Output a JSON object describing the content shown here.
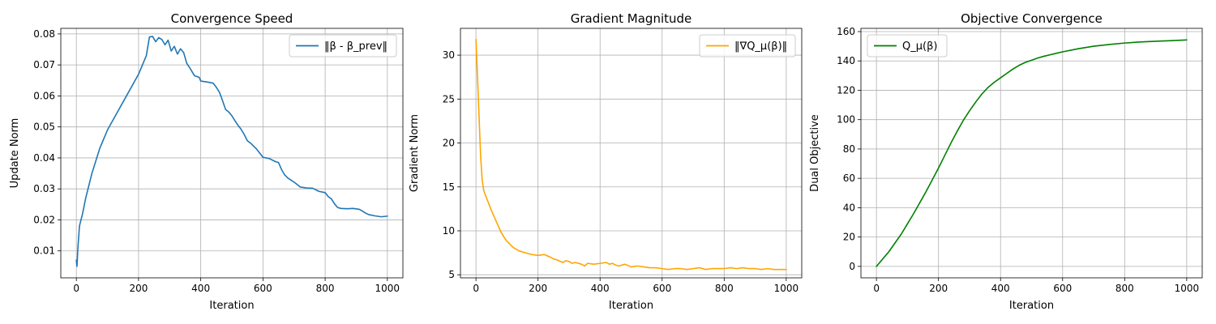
{
  "chart_data": [
    {
      "type": "line",
      "title": "Convergence Speed",
      "xlabel": "Iteration",
      "ylabel": "Update Norm",
      "xlim": [
        -50,
        1050
      ],
      "ylim": [
        0.0013,
        0.0818
      ],
      "xticks": [
        0,
        200,
        400,
        600,
        800,
        1000
      ],
      "yticks": [
        0.01,
        0.02,
        0.03,
        0.04,
        0.05,
        0.06,
        0.07,
        0.08
      ],
      "ytick_labels": [
        "0.01",
        "0.02",
        "0.03",
        "0.04",
        "0.05",
        "0.06",
        "0.07",
        "0.08"
      ],
      "grid": true,
      "legend_position": "upper right",
      "series": [
        {
          "name": "‖β - β_prev‖",
          "color": "#1f77b4",
          "x": [
            0,
            2,
            5,
            10,
            20,
            30,
            50,
            75,
            100,
            150,
            200,
            225,
            235,
            245,
            255,
            265,
            275,
            285,
            295,
            305,
            315,
            325,
            335,
            345,
            355,
            365,
            380,
            395,
            400,
            420,
            440,
            450,
            460,
            470,
            480,
            490,
            500,
            510,
            520,
            530,
            540,
            550,
            560,
            570,
            580,
            600,
            620,
            640,
            650,
            660,
            670,
            680,
            700,
            720,
            740,
            760,
            780,
            800,
            810,
            820,
            830,
            840,
            850,
            870,
            890,
            910,
            920,
            930,
            940,
            960,
            980,
            1000
          ],
          "y": [
            0.007,
            0.005,
            0.011,
            0.018,
            0.022,
            0.027,
            0.035,
            0.043,
            0.049,
            0.058,
            0.067,
            0.073,
            0.079,
            0.0792,
            0.0775,
            0.0788,
            0.0782,
            0.0765,
            0.078,
            0.0745,
            0.076,
            0.0735,
            0.0752,
            0.074,
            0.0705,
            0.069,
            0.0665,
            0.066,
            0.0648,
            0.0645,
            0.0641,
            0.0628,
            0.0612,
            0.0585,
            0.0556,
            0.0548,
            0.0536,
            0.052,
            0.0505,
            0.0492,
            0.0475,
            0.0455,
            0.0448,
            0.0438,
            0.0428,
            0.0402,
            0.0398,
            0.0388,
            0.0385,
            0.0362,
            0.0345,
            0.0335,
            0.0322,
            0.0306,
            0.0303,
            0.0302,
            0.0292,
            0.0288,
            0.0275,
            0.0268,
            0.0252,
            0.024,
            0.0237,
            0.0236,
            0.0237,
            0.0234,
            0.0228,
            0.0222,
            0.0217,
            0.0213,
            0.021,
            0.0212
          ]
        }
      ]
    },
    {
      "type": "line",
      "title": "Gradient Magnitude",
      "xlabel": "Iteration",
      "ylabel": "Gradient Norm",
      "xlim": [
        -50,
        1050
      ],
      "ylim": [
        4.65,
        33.05
      ],
      "xticks": [
        0,
        200,
        400,
        600,
        800,
        1000
      ],
      "yticks": [
        5,
        10,
        15,
        20,
        25,
        30
      ],
      "ytick_labels": [
        "5",
        "10",
        "15",
        "20",
        "25",
        "30"
      ],
      "grid": true,
      "legend_position": "upper right",
      "series": [
        {
          "name": "‖∇Q_μ(β)‖",
          "color": "#ffa500",
          "x": [
            0,
            5,
            10,
            15,
            20,
            25,
            30,
            40,
            50,
            60,
            70,
            80,
            90,
            100,
            120,
            140,
            160,
            180,
            200,
            220,
            240,
            250,
            260,
            280,
            290,
            300,
            310,
            320,
            340,
            350,
            360,
            380,
            400,
            420,
            430,
            440,
            450,
            460,
            480,
            500,
            520,
            540,
            560,
            580,
            600,
            620,
            640,
            660,
            680,
            700,
            720,
            740,
            760,
            780,
            800,
            820,
            840,
            860,
            880,
            900,
            920,
            940,
            960,
            980,
            1000
          ],
          "y": [
            31.8,
            27.5,
            23.0,
            18.5,
            15.8,
            14.6,
            14.1,
            13.2,
            12.3,
            11.5,
            10.7,
            9.9,
            9.3,
            8.8,
            8.1,
            7.7,
            7.5,
            7.3,
            7.2,
            7.3,
            7.0,
            6.8,
            6.7,
            6.4,
            6.6,
            6.5,
            6.3,
            6.4,
            6.2,
            6.0,
            6.3,
            6.2,
            6.3,
            6.4,
            6.2,
            6.3,
            6.1,
            6.0,
            6.2,
            5.9,
            6.0,
            5.9,
            5.8,
            5.8,
            5.7,
            5.6,
            5.7,
            5.7,
            5.6,
            5.7,
            5.8,
            5.6,
            5.7,
            5.7,
            5.7,
            5.8,
            5.7,
            5.8,
            5.7,
            5.7,
            5.6,
            5.7,
            5.6,
            5.6,
            5.6
          ]
        }
      ]
    },
    {
      "type": "line",
      "title": "Objective Convergence",
      "xlabel": "Iteration",
      "ylabel": "Dual Objective",
      "xlim": [
        -50,
        1050
      ],
      "ylim": [
        -7.8,
        162.2
      ],
      "xticks": [
        0,
        200,
        400,
        600,
        800,
        1000
      ],
      "yticks": [
        0,
        20,
        40,
        60,
        80,
        100,
        120,
        140,
        160
      ],
      "ytick_labels": [
        "0",
        "20",
        "40",
        "60",
        "80",
        "100",
        "120",
        "140",
        "160"
      ],
      "grid": true,
      "legend_position": "upper left",
      "series": [
        {
          "name": "Q_μ(β)",
          "color": "#008000",
          "x": [
            0,
            10,
            20,
            40,
            60,
            80,
            100,
            120,
            140,
            160,
            180,
            200,
            220,
            240,
            260,
            280,
            300,
            320,
            340,
            360,
            380,
            400,
            420,
            440,
            460,
            480,
            500,
            520,
            540,
            560,
            580,
            600,
            650,
            700,
            750,
            800,
            850,
            900,
            950,
            1000
          ],
          "y": [
            0,
            2.5,
            5,
            10,
            16,
            22,
            29,
            36,
            43.5,
            51,
            59,
            67,
            75.5,
            84,
            92,
            99.5,
            106,
            112,
            117.5,
            122,
            125.5,
            128.5,
            131.5,
            134.5,
            137,
            139,
            140.5,
            142,
            143.2,
            144.2,
            145.2,
            146.2,
            148.3,
            150,
            151.2,
            152.2,
            152.9,
            153.4,
            153.8,
            154.3
          ]
        }
      ]
    }
  ]
}
